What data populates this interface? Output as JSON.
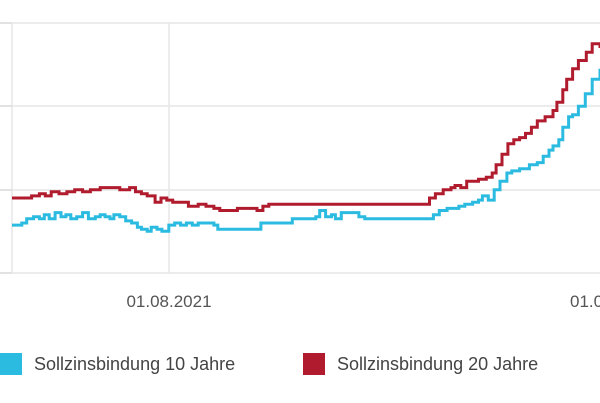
{
  "chart_data": {
    "type": "line",
    "xlabel": "",
    "ylabel": "",
    "x_ticks": [
      "01.08.2021",
      "01.0"
    ],
    "grid": true,
    "legend_position": "bottom",
    "series": [
      {
        "name": "Sollzinsbindung 10 Jahre",
        "color": "#2bbbe0",
        "x": [
          0,
          10,
          15,
          22,
          28,
          33,
          38,
          44,
          50,
          55,
          60,
          66,
          72,
          78,
          85,
          90,
          95,
          100,
          104,
          110,
          116,
          122,
          128,
          132,
          138,
          142,
          148,
          153,
          160,
          166,
          172,
          178,
          184,
          190,
          196,
          202,
          206,
          210,
          214,
          230,
          250,
          254,
          270,
          286,
          292,
          310,
          314,
          320,
          326,
          330,
          336,
          354,
          360,
          380,
          400,
          420,
          430,
          436,
          444,
          456,
          462,
          470,
          476,
          480,
          486,
          492,
          498,
          505,
          510,
          518,
          528,
          536,
          542,
          548,
          552,
          558,
          562,
          568,
          572,
          578,
          585,
          592,
          600
        ],
        "values": [
          3.63,
          3.64,
          3.66,
          3.67,
          3.66,
          3.68,
          3.66,
          3.69,
          3.67,
          3.68,
          3.66,
          3.67,
          3.69,
          3.66,
          3.67,
          3.68,
          3.67,
          3.66,
          3.68,
          3.67,
          3.65,
          3.64,
          3.62,
          3.61,
          3.6,
          3.62,
          3.61,
          3.6,
          3.63,
          3.64,
          3.63,
          3.64,
          3.63,
          3.64,
          3.64,
          3.64,
          3.63,
          3.61,
          3.61,
          3.61,
          3.61,
          3.64,
          3.64,
          3.66,
          3.66,
          3.67,
          3.7,
          3.67,
          3.68,
          3.66,
          3.69,
          3.67,
          3.66,
          3.66,
          3.66,
          3.66,
          3.68,
          3.7,
          3.71,
          3.72,
          3.73,
          3.74,
          3.75,
          3.77,
          3.75,
          3.8,
          3.84,
          3.88,
          3.89,
          3.9,
          3.92,
          3.93,
          3.96,
          3.99,
          4.01,
          4.04,
          4.1,
          4.15,
          4.16,
          4.2,
          4.26,
          4.33,
          4.38
        ]
      },
      {
        "name": "Sollzinsbindung 20 Jahre",
        "color": "#b01c2e",
        "x": [
          0,
          20,
          28,
          34,
          40,
          48,
          56,
          64,
          72,
          80,
          90,
          100,
          110,
          120,
          126,
          132,
          138,
          146,
          152,
          158,
          164,
          172,
          180,
          190,
          198,
          206,
          212,
          220,
          230,
          250,
          256,
          262,
          300,
          340,
          380,
          420,
          426,
          432,
          440,
          448,
          452,
          458,
          464,
          476,
          484,
          490,
          494,
          500,
          506,
          512,
          518,
          524,
          530,
          536,
          544,
          552,
          556,
          562,
          566,
          572,
          578,
          586,
          592,
          600
        ],
        "values": [
          3.76,
          3.77,
          3.78,
          3.77,
          3.79,
          3.78,
          3.79,
          3.8,
          3.79,
          3.8,
          3.81,
          3.81,
          3.8,
          3.81,
          3.79,
          3.78,
          3.77,
          3.74,
          3.76,
          3.75,
          3.74,
          3.74,
          3.72,
          3.73,
          3.72,
          3.71,
          3.7,
          3.7,
          3.71,
          3.7,
          3.72,
          3.73,
          3.73,
          3.73,
          3.73,
          3.73,
          3.76,
          3.78,
          3.8,
          3.81,
          3.82,
          3.81,
          3.84,
          3.85,
          3.86,
          3.88,
          3.92,
          3.97,
          4.02,
          4.04,
          4.05,
          4.07,
          4.1,
          4.13,
          4.15,
          4.18,
          4.22,
          4.28,
          4.33,
          4.38,
          4.42,
          4.46,
          4.5,
          4.48
        ]
      }
    ]
  },
  "legend": {
    "items": [
      {
        "label": "Sollzinsbindung 10 Jahre",
        "color": "#2bbbe0"
      },
      {
        "label": "Sollzinsbindung 20 Jahre",
        "color": "#b01c2e"
      }
    ]
  }
}
